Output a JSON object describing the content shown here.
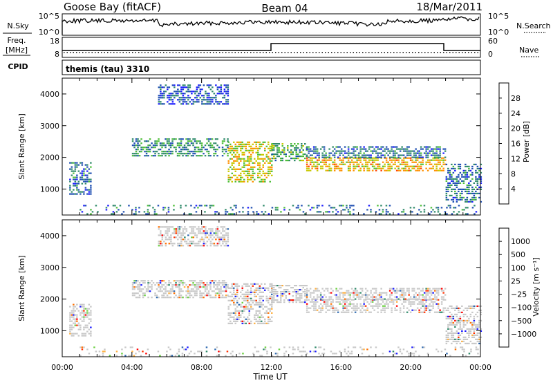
{
  "header": {
    "station": "Goose Bay (fitACF)",
    "beam": "Beam 04",
    "date": "18/Mar/2011"
  },
  "panels": {
    "noise": {
      "left_label": "N.Sky",
      "right_label": "N.Search",
      "left_ticks": [
        "10^5",
        "10^0"
      ],
      "right_ticks": [
        "10^5",
        "10^0"
      ]
    },
    "freq": {
      "left_label_1": "Freq.",
      "left_label_2": "[MHz]",
      "right_label": "Nave",
      "left_ticks": [
        "18",
        "8"
      ],
      "right_ticks": [
        "60",
        "0"
      ]
    },
    "cpid": {
      "label": "CPID",
      "program": "themis (tau) 3310"
    }
  },
  "chart_data": [
    {
      "type": "heatmap",
      "title": "",
      "xlabel": "",
      "ylabel": "Slant Range [km]",
      "xlim": [
        "00:00",
        "00:00"
      ],
      "ylim": [
        180,
        4500
      ],
      "y_ticks": [
        "1000",
        "2000",
        "3000",
        "4000"
      ],
      "colorbar": {
        "label": "Power [dB]",
        "ticks": [
          "4",
          "8",
          "12",
          "16",
          "20",
          "24",
          "28"
        ],
        "colors": [
          "#1a1aff",
          "#1f4fb2",
          "#2f8a6a",
          "#4fbf3a",
          "#c8c800",
          "#ff9000",
          "#ff4000",
          "#ff0000"
        ]
      },
      "echo_regions": [
        {
          "start_h": 0.4,
          "end_h": 1.6,
          "range_km": [
            850,
            1850
          ],
          "power_db": 8
        },
        {
          "start_h": 4.0,
          "end_h": 9.5,
          "range_km": [
            2050,
            2600
          ],
          "power_db": 10
        },
        {
          "start_h": 5.5,
          "end_h": 9.5,
          "range_km": [
            3700,
            4300
          ],
          "power_db": 6
        },
        {
          "start_h": 9.5,
          "end_h": 12.0,
          "range_km": [
            1200,
            2500
          ],
          "power_db": 18
        },
        {
          "start_h": 12.0,
          "end_h": 14.0,
          "range_km": [
            1900,
            2450
          ],
          "power_db": 12
        },
        {
          "start_h": 14.0,
          "end_h": 22.0,
          "range_km": [
            1550,
            2000
          ],
          "power_db": 20
        },
        {
          "start_h": 14.0,
          "end_h": 22.0,
          "range_km": [
            2000,
            2350
          ],
          "power_db": 8
        },
        {
          "start_h": 22.0,
          "end_h": 24.0,
          "range_km": [
            600,
            1800
          ],
          "power_db": 8
        },
        {
          "start_h": 1.0,
          "end_h": 24.0,
          "range_km": [
            180,
            500
          ],
          "power_db": 8
        }
      ]
    },
    {
      "type": "heatmap",
      "title": "",
      "xlabel": "Time UT",
      "ylabel": "Slant Range [km]",
      "xlim": [
        "00:00",
        "00:00"
      ],
      "ylim": [
        180,
        4500
      ],
      "x_ticks": [
        "00:00",
        "04:00",
        "08:00",
        "12:00",
        "16:00",
        "20:00",
        "00:00"
      ],
      "y_ticks": [
        "1000",
        "2000",
        "3000",
        "4000"
      ],
      "colorbar": {
        "label": "Velocity [m s⁻¹]",
        "ticks": [
          "1000",
          "500",
          "100",
          "25",
          "−25",
          "−100",
          "−500",
          "−1000"
        ],
        "colors": [
          "#1a1aff",
          "#2f6ab0",
          "#2f8a6a",
          "#6ad040",
          "#c8c8c8",
          "#ffb040",
          "#ff7000",
          "#ff3000",
          "#ff0000"
        ]
      },
      "echo_regions": [
        {
          "start_h": 0.4,
          "end_h": 1.6,
          "range_km": [
            850,
            1850
          ],
          "velocity": 60
        },
        {
          "start_h": 4.0,
          "end_h": 9.5,
          "range_km": [
            2050,
            2600
          ],
          "velocity": 0
        },
        {
          "start_h": 5.5,
          "end_h": 9.5,
          "range_km": [
            3700,
            4300
          ],
          "velocity": 0
        },
        {
          "start_h": 9.5,
          "end_h": 12.0,
          "range_km": [
            1200,
            2500
          ],
          "velocity": 0
        },
        {
          "start_h": 12.0,
          "end_h": 14.0,
          "range_km": [
            1900,
            2450
          ],
          "velocity": 0
        },
        {
          "start_h": 14.0,
          "end_h": 22.0,
          "range_km": [
            1550,
            2000
          ],
          "velocity": 0
        },
        {
          "start_h": 14.0,
          "end_h": 22.0,
          "range_km": [
            2000,
            2350
          ],
          "velocity": 0
        },
        {
          "start_h": 22.0,
          "end_h": 24.0,
          "range_km": [
            600,
            1800
          ],
          "velocity": 0
        },
        {
          "start_h": 1.0,
          "end_h": 24.0,
          "range_km": [
            180,
            500
          ],
          "velocity": -120
        }
      ]
    }
  ]
}
